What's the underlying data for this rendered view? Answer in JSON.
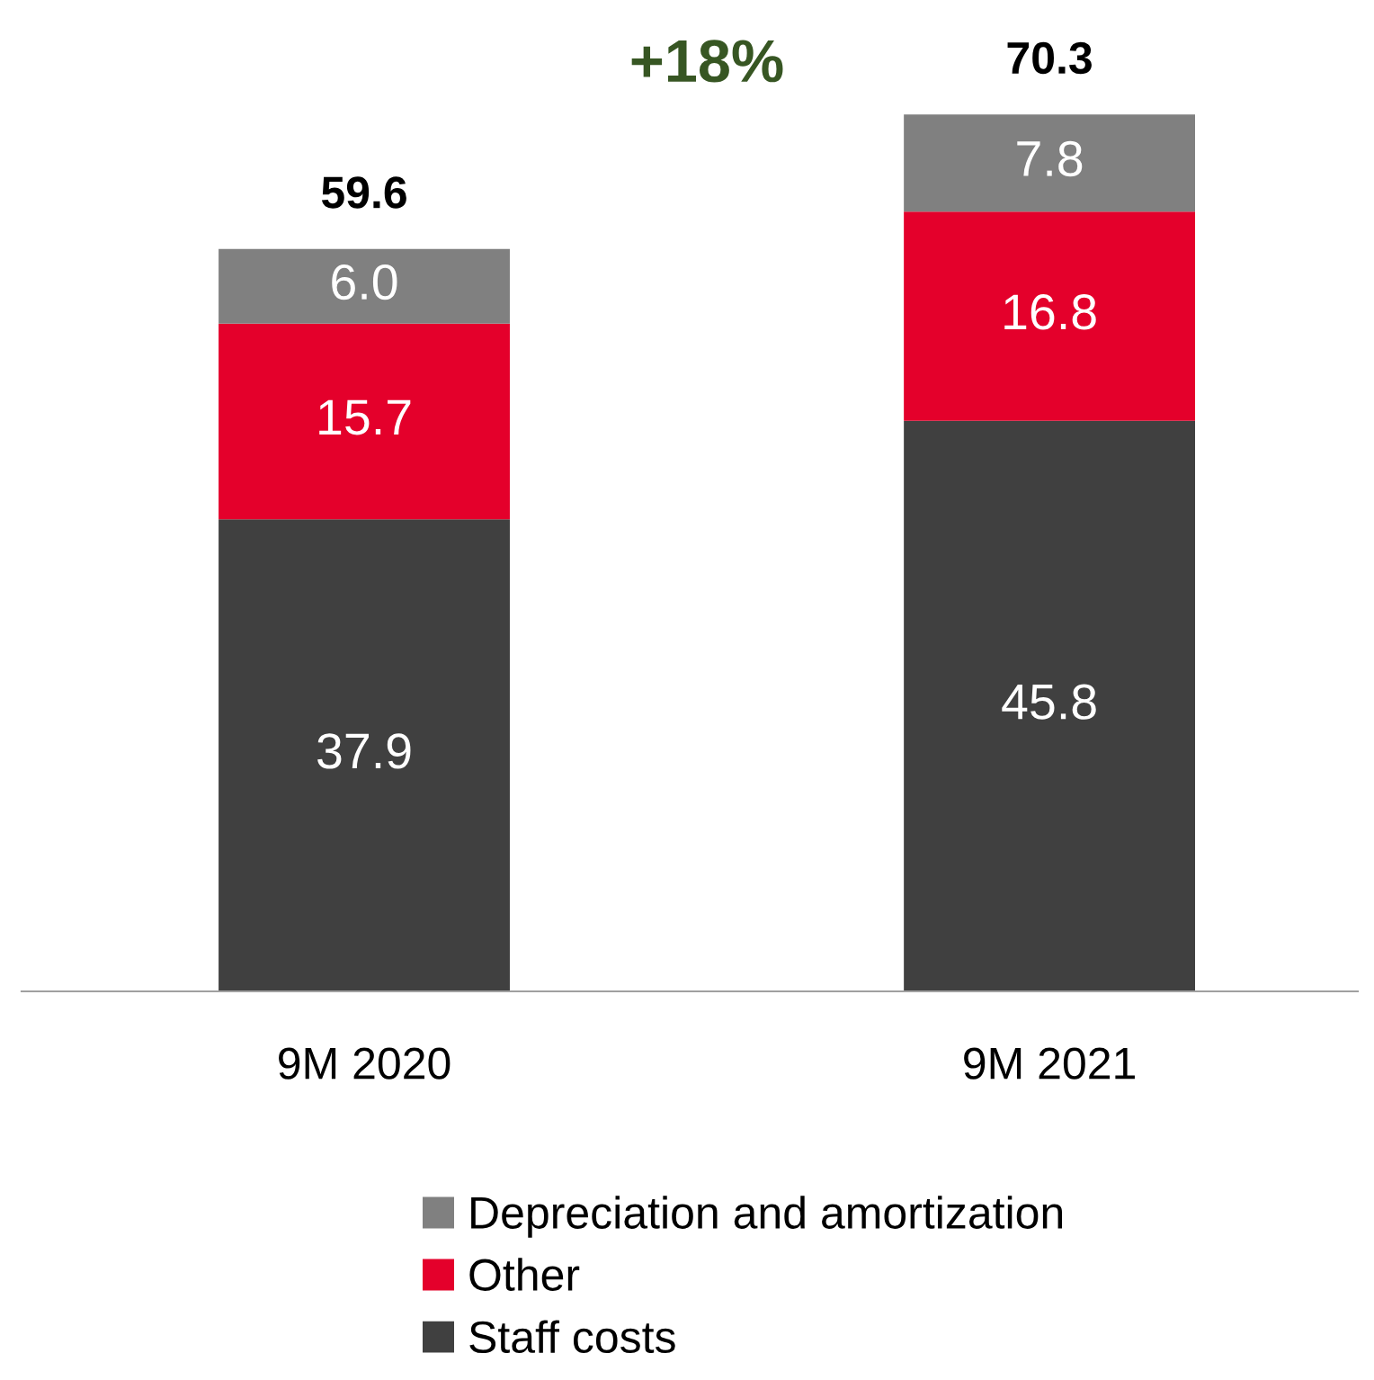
{
  "chart_data": {
    "type": "bar",
    "stacked": true,
    "data_labels": true,
    "legend": "bottom",
    "categories": [
      "9M 2020",
      "9M 2021"
    ],
    "series": [
      {
        "name": "Staff costs",
        "color": "#404040",
        "values": [
          37.9,
          45.8
        ]
      },
      {
        "name": "Other",
        "color": "#e4002b",
        "values": [
          15.7,
          16.8
        ]
      },
      {
        "name": "Depreciation and amortization",
        "color": "#808080",
        "values": [
          6.0,
          7.8
        ],
        "value_labels": [
          "6.0",
          "7.8"
        ]
      }
    ],
    "totals": [
      "59.6",
      "70.3"
    ],
    "annotations": [
      "+18%"
    ]
  }
}
